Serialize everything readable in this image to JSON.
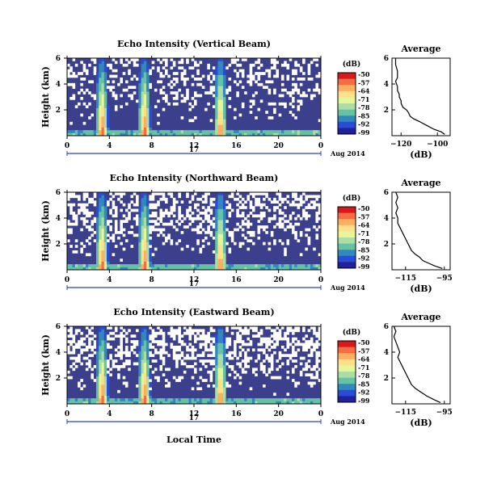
{
  "figure": {
    "date_label": "Aug 2014",
    "day_label": "17",
    "shared_xlabel": "Local Time",
    "shared_ylabel": "Height (km)",
    "colorbar_unit": "(dB)",
    "colorbar_ticks": [
      "-50",
      "-57",
      "-64",
      "-71",
      "-78",
      "-85",
      "-92",
      "-99"
    ],
    "colorbar_colors": [
      "#d7191c",
      "#f46d43",
      "#fdae61",
      "#fee08b",
      "#e6f598",
      "#abdda4",
      "#66c2a5",
      "#3288bd",
      "#2a4bd7",
      "#21219a"
    ],
    "background_color": "#3b3f8c",
    "missing_color": "#ffffff",
    "profile_title": "Average",
    "profile_xlabel": "(dB)"
  },
  "chart_data": [
    {
      "type": "heatmap",
      "title": "Echo Intensity (Vertical Beam)",
      "xlabel": "Local Time",
      "ylabel": "Height (km)",
      "x_ticks": [
        "0",
        "4",
        "8",
        "12",
        "16",
        "20",
        "0"
      ],
      "y_ticks": [
        "6",
        "4",
        "2"
      ],
      "xlim": [
        0,
        24
      ],
      "ylim": [
        0,
        6
      ],
      "colorbar": {
        "label": "(dB)",
        "range": [
          -99,
          -50
        ]
      },
      "bright_columns_hours": [
        3.3,
        7.3,
        14.5
      ],
      "missing_fraction": 0.35,
      "seed": 11
    },
    {
      "type": "line",
      "title": "Average",
      "xlabel": "(dB)",
      "x_ticks": [
        "-120",
        "-100"
      ],
      "y_ticks": [
        "6",
        "4",
        "2"
      ],
      "xlim": [
        -125,
        -93
      ],
      "ylim": [
        0,
        6
      ],
      "x": [
        -123,
        -123,
        -122,
        -122,
        -123,
        -122,
        -122,
        -121,
        -121,
        -120,
        -120,
        -119,
        -117,
        -116,
        -115,
        -113,
        -110,
        -106,
        -102,
        -98,
        -96
      ],
      "y": [
        6.0,
        5.5,
        5.0,
        4.5,
        4.2,
        3.8,
        3.5,
        3.2,
        3.0,
        2.7,
        2.5,
        2.2,
        2.0,
        1.8,
        1.5,
        1.3,
        1.1,
        0.8,
        0.5,
        0.3,
        0.1
      ]
    },
    {
      "type": "heatmap",
      "title": "Echo Intensity (Northward Beam)",
      "xlabel": "Local Time",
      "ylabel": "Height (km)",
      "x_ticks": [
        "0",
        "4",
        "8",
        "12",
        "16",
        "20",
        "0"
      ],
      "y_ticks": [
        "6",
        "4",
        "2"
      ],
      "xlim": [
        0,
        24
      ],
      "ylim": [
        0,
        6
      ],
      "colorbar": {
        "label": "(dB)",
        "range": [
          -99,
          -50
        ]
      },
      "bright_columns_hours": [
        3.3,
        7.3,
        14.5
      ],
      "missing_fraction": 0.45,
      "seed": 23
    },
    {
      "type": "line",
      "title": "Average",
      "xlabel": "(dB)",
      "x_ticks": [
        "-115",
        "-95"
      ],
      "y_ticks": [
        "6",
        "4",
        "2"
      ],
      "xlim": [
        -122,
        -92
      ],
      "ylim": [
        0,
        6
      ],
      "x": [
        -120,
        -119,
        -120,
        -119,
        -120,
        -119,
        -119,
        -118,
        -117,
        -116,
        -115,
        -114,
        -113,
        -112,
        -110,
        -108,
        -106,
        -103,
        -100,
        -96
      ],
      "y": [
        6.0,
        5.6,
        5.2,
        4.8,
        4.4,
        4.0,
        3.6,
        3.3,
        3.0,
        2.7,
        2.4,
        2.1,
        1.8,
        1.5,
        1.2,
        1.0,
        0.7,
        0.5,
        0.3,
        0.1
      ]
    },
    {
      "type": "heatmap",
      "title": "Echo Intensity (Eastward Beam)",
      "xlabel": "Local Time",
      "ylabel": "Height (km)",
      "x_ticks": [
        "0",
        "4",
        "8",
        "12",
        "16",
        "20",
        "0"
      ],
      "y_ticks": [
        "6",
        "4",
        "2"
      ],
      "xlim": [
        0,
        24
      ],
      "ylim": [
        0,
        6
      ],
      "colorbar": {
        "label": "(dB)",
        "range": [
          -99,
          -50
        ]
      },
      "bright_columns_hours": [
        3.3,
        7.3,
        14.5
      ],
      "missing_fraction": 0.5,
      "seed": 37
    },
    {
      "type": "line",
      "title": "Average",
      "xlabel": "(dB)",
      "x_ticks": [
        "-115",
        "-95"
      ],
      "y_ticks": [
        "6",
        "4",
        "2"
      ],
      "xlim": [
        -122,
        -92
      ],
      "ylim": [
        0,
        6
      ],
      "x": [
        -121,
        -120,
        -121,
        -120,
        -119,
        -118,
        -119,
        -118,
        -117,
        -116,
        -115,
        -114,
        -113,
        -112,
        -110,
        -107,
        -104,
        -100,
        -97
      ],
      "y": [
        6.0,
        5.6,
        5.2,
        4.8,
        4.4,
        4.0,
        3.6,
        3.3,
        3.0,
        2.7,
        2.4,
        2.1,
        1.8,
        1.5,
        1.2,
        0.9,
        0.6,
        0.3,
        0.1
      ]
    }
  ]
}
